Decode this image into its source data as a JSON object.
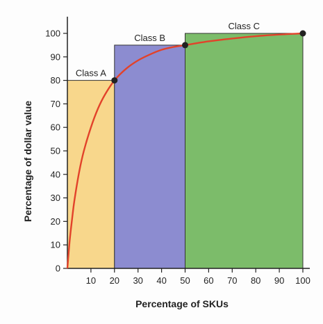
{
  "chart_data": {
    "type": "area",
    "xlabel": "Percentage of SKUs",
    "ylabel": "Percentage of dollar value",
    "x_tick_labels": [
      "10",
      "20",
      "30",
      "40",
      "50",
      "60",
      "70",
      "80",
      "90",
      "100"
    ],
    "y_tick_labels": [
      "0",
      "10",
      "20",
      "30",
      "40",
      "50",
      "60",
      "70",
      "80",
      "90",
      "100"
    ],
    "origin_label": "0",
    "xlim": [
      0,
      100
    ],
    "ylim": [
      0,
      100
    ],
    "grid": false,
    "legend": "none",
    "classes": [
      {
        "name": "Class A",
        "x_start": 0,
        "x_end": 20,
        "y_value": 80,
        "color": "#f8d78c"
      },
      {
        "name": "Class B",
        "x_start": 20,
        "x_end": 50,
        "y_value": 95,
        "color": "#8c8cd0"
      },
      {
        "name": "Class C",
        "x_start": 50,
        "x_end": 100,
        "y_value": 100,
        "color": "#7cbc6a"
      }
    ],
    "curve": {
      "color": "#e2422a",
      "points": [
        {
          "x": 0,
          "y": 0
        },
        {
          "x": 1,
          "y": 12
        },
        {
          "x": 2,
          "y": 21
        },
        {
          "x": 3,
          "y": 29
        },
        {
          "x": 5,
          "y": 41
        },
        {
          "x": 7,
          "y": 50
        },
        {
          "x": 10,
          "y": 60
        },
        {
          "x": 13,
          "y": 68
        },
        {
          "x": 16,
          "y": 74
        },
        {
          "x": 20,
          "y": 80
        },
        {
          "x": 25,
          "y": 85
        },
        {
          "x": 30,
          "y": 88.5
        },
        {
          "x": 35,
          "y": 91
        },
        {
          "x": 40,
          "y": 93
        },
        {
          "x": 45,
          "y": 94.2
        },
        {
          "x": 50,
          "y": 95
        },
        {
          "x": 60,
          "y": 96.6
        },
        {
          "x": 70,
          "y": 97.8
        },
        {
          "x": 80,
          "y": 98.8
        },
        {
          "x": 90,
          "y": 99.5
        },
        {
          "x": 100,
          "y": 100
        }
      ]
    },
    "marked_points": [
      {
        "x": 20,
        "y": 80
      },
      {
        "x": 50,
        "y": 95
      },
      {
        "x": 100,
        "y": 100
      }
    ]
  }
}
